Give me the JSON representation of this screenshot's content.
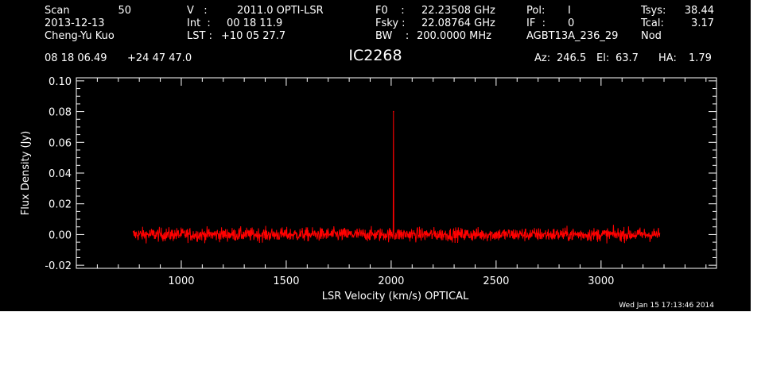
{
  "header": {
    "scan_label": "Scan",
    "scan_value": "50",
    "date": "2013-12-13",
    "observer": "Cheng-Yu Kuo",
    "v_label": "V   :",
    "v_value": "2011.0 OPTI-LSR",
    "int_label": "Int  :",
    "int_value": "00 18 11.9",
    "lst_label": "LST :",
    "lst_value": "+10 05 27.7",
    "f0_label": "F0    :",
    "f0_value": "22.23508 GHz",
    "fsky_label": "Fsky :",
    "fsky_value": "22.08764 GHz",
    "bw_label": "BW    :",
    "bw_value": "200.0000 MHz",
    "pol_label": "Pol:",
    "pol_value": "I",
    "if_label": "IF  :",
    "if_value": "0",
    "project": "AGBT13A_236_29",
    "tsys_label": "Tsys:",
    "tsys_value": "38.44",
    "tcal_label": "Tcal:",
    "tcal_value": "3.17",
    "mode": "Nod",
    "ra": "08 18 06.49",
    "dec": "+24 47 47.0",
    "source": "IC2268",
    "az_label": "Az:",
    "az_value": "246.5",
    "el_label": "El:",
    "el_value": "63.7",
    "ha_label": "HA:",
    "ha_value": "1.79"
  },
  "timestamp": "Wed Jan 15 17:13:46 2014",
  "colors": {
    "background": "#000000",
    "axes": "#ffffff",
    "spectrum": "#ff0000"
  },
  "chart_data": {
    "type": "line",
    "xlabel": "LSR Velocity (km/s) OPTICAL",
    "ylabel": "Flux Density (Jy)",
    "xlim": [
      500,
      3550
    ],
    "ylim": [
      -0.022,
      0.102
    ],
    "x_ticks": [
      1000,
      1500,
      2000,
      2500,
      3000
    ],
    "x_tick_labels": [
      "1000",
      "1500",
      "2000",
      "2500",
      "3000"
    ],
    "y_ticks": [
      -0.02,
      0.0,
      0.02,
      0.04,
      0.06,
      0.08,
      0.1
    ],
    "y_tick_labels": [
      "-0.02",
      "0.00",
      "0.02",
      "0.04",
      "0.06",
      "0.08",
      "0.10"
    ],
    "series": [
      {
        "velocity_range": [
          770,
          3280
        ],
        "baseline_flux": 0.0,
        "noise_peak_to_peak": [
          -0.013,
          0.013
        ],
        "line_feature": {
          "velocity": 2011,
          "flux": 0.08
        }
      }
    ]
  }
}
